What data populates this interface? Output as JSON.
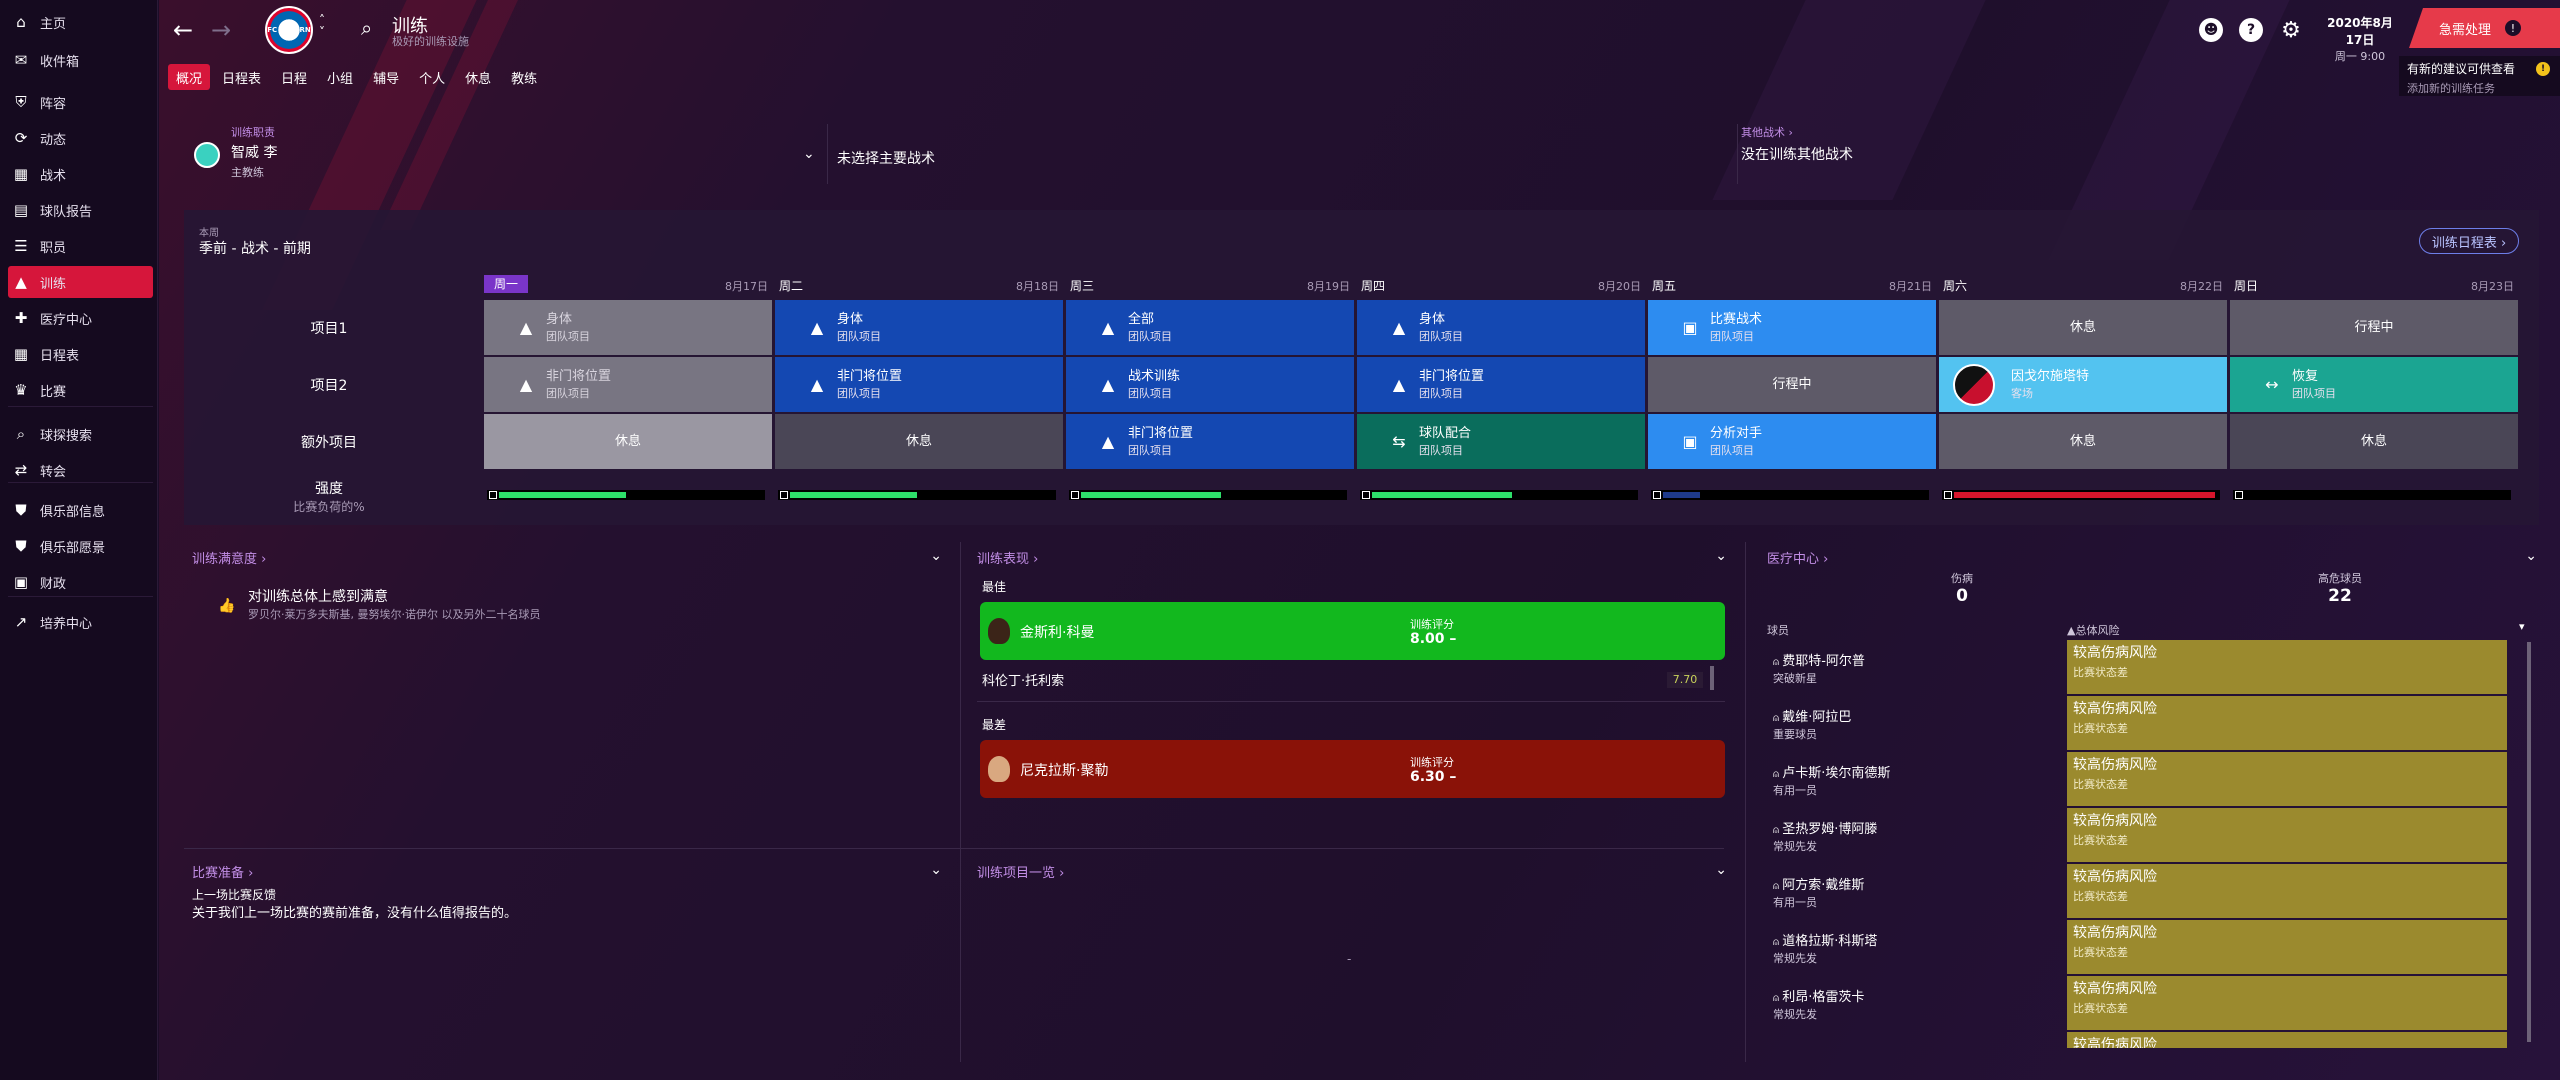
{
  "sidebar": {
    "items": [
      {
        "label": "主页",
        "icon": "home-icon",
        "glyph": "⌂"
      },
      {
        "label": "收件箱",
        "icon": "inbox-icon",
        "glyph": "✉"
      },
      {
        "label": "阵容",
        "icon": "squad-icon",
        "glyph": "⛨"
      },
      {
        "label": "动态",
        "icon": "dynamics-icon",
        "glyph": "⟳"
      },
      {
        "label": "战术",
        "icon": "tactics-icon",
        "glyph": "▦"
      },
      {
        "label": "球队报告",
        "icon": "report-icon",
        "glyph": "▤"
      },
      {
        "label": "职员",
        "icon": "staff-icon",
        "glyph": "☰"
      },
      {
        "label": "训练",
        "icon": "training-icon",
        "glyph": "▲"
      },
      {
        "label": "医疗中心",
        "icon": "medical-icon",
        "glyph": "✚"
      },
      {
        "label": "日程表",
        "icon": "calendar-icon",
        "glyph": "▦"
      },
      {
        "label": "比赛",
        "icon": "trophy-icon",
        "glyph": "♛"
      },
      {
        "label": "球探搜索",
        "icon": "scouting-icon",
        "glyph": "⌕"
      },
      {
        "label": "转会",
        "icon": "transfers-icon",
        "glyph": "⇄"
      },
      {
        "label": "俱乐部信息",
        "icon": "club-info-icon",
        "glyph": "⛊"
      },
      {
        "label": "俱乐部愿景",
        "icon": "club-vision-icon",
        "glyph": "⛊"
      },
      {
        "label": "财政",
        "icon": "finances-icon",
        "glyph": "▣"
      },
      {
        "label": "培养中心",
        "icon": "development-icon",
        "glyph": "↗"
      }
    ]
  },
  "header": {
    "back_glyph": "←",
    "forward_glyph": "→",
    "crest_text": "FC BAYERN",
    "title": "训练",
    "subtitle": "极好的训练设施",
    "date": "2020年8月17日",
    "time": "周一 9:00",
    "urgent_label": "急需处理",
    "advice_title": "有新的建议可供查看",
    "advice_sub": "添加新的训练任务",
    "advice_badge": "!",
    "colors": {
      "accent": "#d6163b",
      "urgent": "#e63a4a"
    }
  },
  "tabs": [
    "概况",
    "日程表",
    "日程",
    "小组",
    "辅导",
    "个人",
    "休息",
    "教练"
  ],
  "staff": {
    "coach_label": "训练职责",
    "coach_name": "智威 李",
    "coach_role": "主教练",
    "main_tactic": "未选择主要战术",
    "other_label": "其他战术 ›",
    "other_value": "没在训练其他战术"
  },
  "schedule": {
    "week_label": "本周",
    "phase": "季前 - 战术 - 前期",
    "calendar_btn": "训练日程表 ›",
    "days": [
      {
        "name": "周一",
        "date": "8月17日"
      },
      {
        "name": "周二",
        "date": "8月18日"
      },
      {
        "name": "周三",
        "date": "8月19日"
      },
      {
        "name": "周四",
        "date": "8月20日"
      },
      {
        "name": "周五",
        "date": "8月21日"
      },
      {
        "name": "周六",
        "date": "8月22日"
      },
      {
        "name": "周日",
        "date": "8月23日"
      }
    ],
    "row_labels": [
      "项目1",
      "项目2",
      "额外项目"
    ],
    "intensity_label": "强度",
    "intensity_sub": "比赛负荷的%",
    "rows": [
      [
        {
          "t": "身体",
          "s": "团队项目",
          "c": "grey",
          "i": "▲"
        },
        {
          "t": "身体",
          "s": "团队项目",
          "c": "blue",
          "i": "▲"
        },
        {
          "t": "全部",
          "s": "团队项目",
          "c": "blue",
          "i": "▲"
        },
        {
          "t": "身体",
          "s": "团队项目",
          "c": "blue",
          "i": "▲"
        },
        {
          "t": "比赛战术",
          "s": "团队项目",
          "c": "lightblue",
          "i": "▣"
        },
        {
          "t": "休息",
          "s": "",
          "c": "slate",
          "i": ""
        },
        {
          "t": "行程中",
          "s": "",
          "c": "slate",
          "i": ""
        }
      ],
      [
        {
          "t": "非门将位置",
          "s": "团队项目",
          "c": "grey",
          "i": "▲"
        },
        {
          "t": "非门将位置",
          "s": "团队项目",
          "c": "blue",
          "i": "▲"
        },
        {
          "t": "战术训练",
          "s": "团队项目",
          "c": "blue",
          "i": "▲"
        },
        {
          "t": "非门将位置",
          "s": "团队项目",
          "c": "blue",
          "i": "▲"
        },
        {
          "t": "行程中",
          "s": "",
          "c": "slate",
          "i": ""
        },
        {
          "t": "因戈尔施塔特",
          "s": "客场",
          "c": "cyan",
          "i": "crest"
        },
        {
          "t": "恢复",
          "s": "团队项目",
          "c": "tealbright",
          "i": "↔"
        }
      ],
      [
        {
          "t": "休息",
          "s": "",
          "c": "lightgrey",
          "i": ""
        },
        {
          "t": "休息",
          "s": "",
          "c": "darkgrey",
          "i": ""
        },
        {
          "t": "非门将位置",
          "s": "团队项目",
          "c": "blue",
          "i": "▲"
        },
        {
          "t": "球队配合",
          "s": "团队项目",
          "c": "teal",
          "i": "⇆"
        },
        {
          "t": "分析对手",
          "s": "团队项目",
          "c": "lightblue",
          "i": "▣"
        },
        {
          "t": "休息",
          "s": "",
          "c": "slate",
          "i": ""
        },
        {
          "t": "休息",
          "s": "",
          "c": "darkgrey",
          "i": ""
        }
      ]
    ],
    "intensity": [
      {
        "value": 0.48,
        "color": "#2ee06a"
      },
      {
        "value": 0.48,
        "color": "#2ee06a"
      },
      {
        "value": 0.53,
        "color": "#2ee06a"
      },
      {
        "value": 0.53,
        "color": "#2ee06a"
      },
      {
        "value": 0.14,
        "color": "#1e3a8a"
      },
      {
        "value": 0.99,
        "color": "#d6162b"
      },
      {
        "value": 0.0,
        "color": "#2ee06a"
      }
    ]
  },
  "satisfaction": {
    "title": "训练满意度 ›",
    "headline": "对训练总体上感到满意",
    "detail": "罗贝尔·莱万多夫斯基, 曼努埃尔·诺伊尔 以及另外二十名球员"
  },
  "performance": {
    "title": "训练表现 ›",
    "best_label": "最佳",
    "worst_label": "最差",
    "best": {
      "name": "金斯利·科曼",
      "rating_label": "训练评分",
      "rating": "8.00 –"
    },
    "second": {
      "name": "科伦丁·托利索",
      "rating": "7.70"
    },
    "worst": {
      "name": "尼克拉斯·聚勒",
      "rating_label": "训练评分",
      "rating": "6.30 –"
    }
  },
  "medical": {
    "title": "医疗中心 ›",
    "injured_label": "伤病",
    "injured_value": "0",
    "risk_label": "高危球员",
    "risk_value": "22",
    "col_player": "球员",
    "col_risk": "▲总体风险",
    "rows": [
      {
        "name": "费耶特-阿尔普",
        "type": "突破新星",
        "risk": "较高伤病风险",
        "status": "比赛状态差"
      },
      {
        "name": "戴维·阿拉巴",
        "type": "重要球员",
        "risk": "较高伤病风险",
        "status": "比赛状态差"
      },
      {
        "name": "卢卡斯·埃尔南德斯",
        "type": "有用一员",
        "risk": "较高伤病风险",
        "status": "比赛状态差"
      },
      {
        "name": "圣热罗姆·博阿滕",
        "type": "常规先发",
        "risk": "较高伤病风险",
        "status": "比赛状态差"
      },
      {
        "name": "阿方索·戴维斯",
        "type": "有用一员",
        "risk": "较高伤病风险",
        "status": "比赛状态差"
      },
      {
        "name": "道格拉斯·科斯塔",
        "type": "常规先发",
        "risk": "较高伤病风险",
        "status": "比赛状态差"
      },
      {
        "name": "利昂·格雷茨卡",
        "type": "常规先发",
        "risk": "较高伤病风险",
        "status": "比赛状态差"
      },
      {
        "name": "",
        "type": "",
        "risk": "较高伤病风险",
        "status": ""
      }
    ]
  },
  "match_prep": {
    "title": "比赛准备 ›",
    "subtitle": "上一场比赛反馈",
    "text": "关于我们上一场比赛的赛前准备，没有什么值得报告的。"
  },
  "sessions": {
    "title": "训练项目一览 ›",
    "empty": "-"
  }
}
